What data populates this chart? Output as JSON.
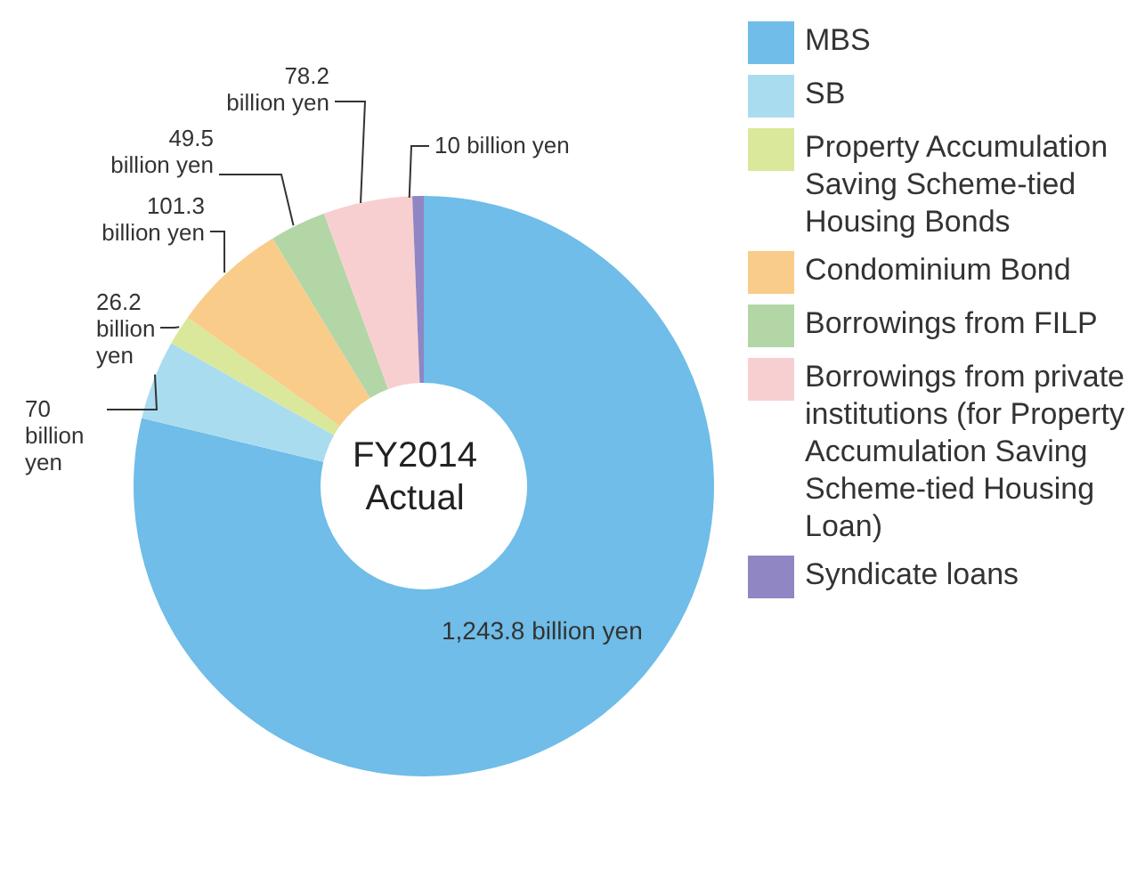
{
  "chart_data": {
    "type": "donut",
    "annotations": [
      "FY2014 Actual"
    ],
    "categories": [
      "MBS",
      "SB",
      "Property Accumulation Saving Scheme-tied Housing Bonds",
      "Condominium Bond",
      "Borrowings from FILP",
      "Borrowings from private institutions (for Property Accumulation Saving Scheme-tied Housing Loan)",
      "Syndicate loans"
    ],
    "values": [
      1243.8,
      70,
      26.2,
      101.3,
      49.5,
      78.2,
      10
    ],
    "value_labels": [
      "1,243.8 billion yen",
      "70 billion yen",
      "26.2 billion yen",
      "101.3 billion yen",
      "49.5 billion yen",
      "78.2 billion yen",
      "10 billion yen"
    ],
    "colors": [
      "#6fbde8",
      "#aadcf0",
      "#d9e89a",
      "#f9cc8a",
      "#b3d6a6",
      "#f8cfd0",
      "#8f86c3"
    ],
    "legend": "right"
  }
}
